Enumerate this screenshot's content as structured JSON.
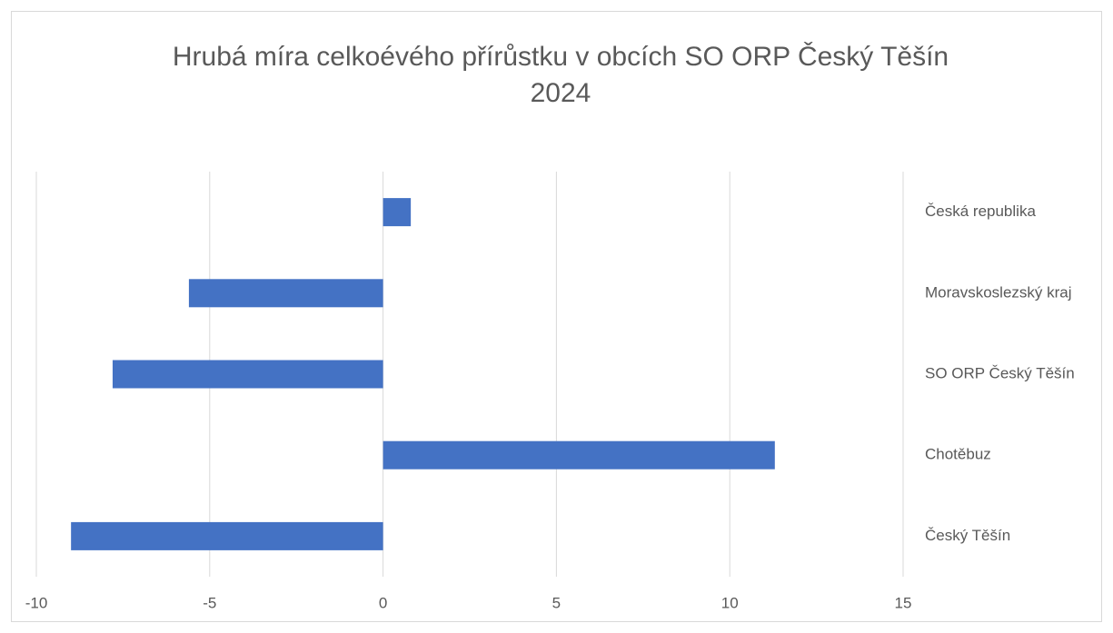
{
  "chart_data": {
    "type": "bar",
    "orientation": "horizontal",
    "title": [
      "Hrubá míra celkoévého přírůstku v obcích SO ORP Český Těšín",
      "2024"
    ],
    "categories": [
      "Česká republika",
      "Moravskoslezský kraj",
      "SO ORP Český Těšín",
      "Chotěbuz",
      "Český Těšín"
    ],
    "values": [
      0.8,
      -5.6,
      -7.8,
      11.3,
      -9.0
    ],
    "color": "#4472c4",
    "xlim": [
      -10,
      15
    ],
    "xticks": [
      -10,
      -5,
      0,
      5,
      10,
      15
    ],
    "grid": true
  }
}
